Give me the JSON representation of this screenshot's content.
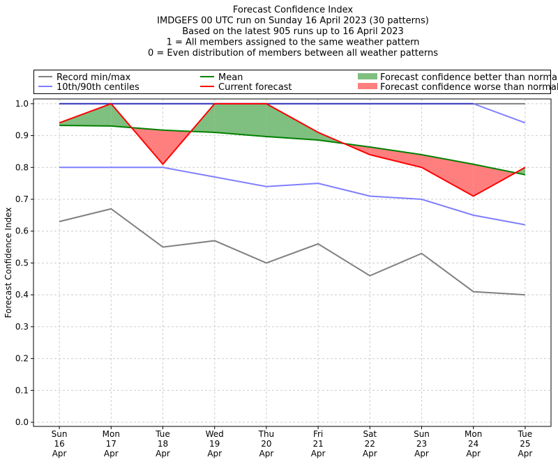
{
  "chart_data": {
    "type": "line",
    "title_lines": [
      "Forecast Confidence Index",
      "IMDGEFS 00 UTC run on Sunday 16 April 2023 (30 patterns)",
      "Based on the latest 905 runs up to 16 April 2023",
      "1 = All members assigned to the same weather pattern",
      "0 = Even distribution of members between all weather patterns"
    ],
    "ylabel": "Forecast Confidence Index",
    "xlabel": "",
    "categories": [
      [
        "Sun",
        "16",
        "Apr"
      ],
      [
        "Mon",
        "17",
        "Apr"
      ],
      [
        "Tue",
        "18",
        "Apr"
      ],
      [
        "Wed",
        "19",
        "Apr"
      ],
      [
        "Thu",
        "20",
        "Apr"
      ],
      [
        "Fri",
        "21",
        "Apr"
      ],
      [
        "Sat",
        "22",
        "Apr"
      ],
      [
        "Sun",
        "23",
        "Apr"
      ],
      [
        "Mon",
        "24",
        "Apr"
      ],
      [
        "Tue",
        "25",
        "Apr"
      ]
    ],
    "ylim": [
      -0.013,
      1.015
    ],
    "yticks": [
      "0.0",
      "0.1",
      "0.2",
      "0.3",
      "0.4",
      "0.5",
      "0.6",
      "0.7",
      "0.8",
      "0.9",
      "1.0"
    ],
    "grid": true,
    "legend_placement": "top, above plot",
    "series": {
      "record_max": [
        1.0,
        1.0,
        1.0,
        1.0,
        1.0,
        1.0,
        1.0,
        1.0,
        1.0,
        1.0
      ],
      "record_min": [
        0.63,
        0.67,
        0.55,
        0.57,
        0.5,
        0.56,
        0.46,
        0.53,
        0.41,
        0.4
      ],
      "p90": [
        1.0,
        1.0,
        1.0,
        1.0,
        1.0,
        1.0,
        1.0,
        1.0,
        1.0,
        0.94
      ],
      "p10": [
        0.8,
        0.8,
        0.8,
        0.77,
        0.74,
        0.75,
        0.71,
        0.7,
        0.65,
        0.62
      ],
      "mean": [
        0.932,
        0.93,
        0.917,
        0.91,
        0.897,
        0.886,
        0.864,
        0.84,
        0.81,
        0.777
      ],
      "current": [
        0.94,
        1.0,
        0.81,
        1.0,
        1.0,
        0.91,
        0.84,
        0.8,
        0.71,
        0.8
      ]
    },
    "legend": [
      {
        "label": "Record min/max",
        "color": "#808080",
        "kind": "line"
      },
      {
        "label": "10th/90th centiles",
        "color": "#7f7fff",
        "kind": "line"
      },
      {
        "label": "Mean",
        "color": "#008000",
        "kind": "line"
      },
      {
        "label": "Current forecast",
        "color": "#ff0000",
        "kind": "line"
      },
      {
        "label": "Forecast confidence better than normal",
        "color": "#7fbf7f",
        "kind": "patch"
      },
      {
        "label": "Forecast confidence worse than normal",
        "color": "#ff7f7f",
        "kind": "patch"
      }
    ],
    "colors": {
      "record": "#808080",
      "centile": "#7f7fff",
      "centile_top": "#3f3fbf",
      "mean": "#008000",
      "current": "#ff0000",
      "better": "#7fbf7f",
      "worse": "#ff7f7f"
    }
  }
}
